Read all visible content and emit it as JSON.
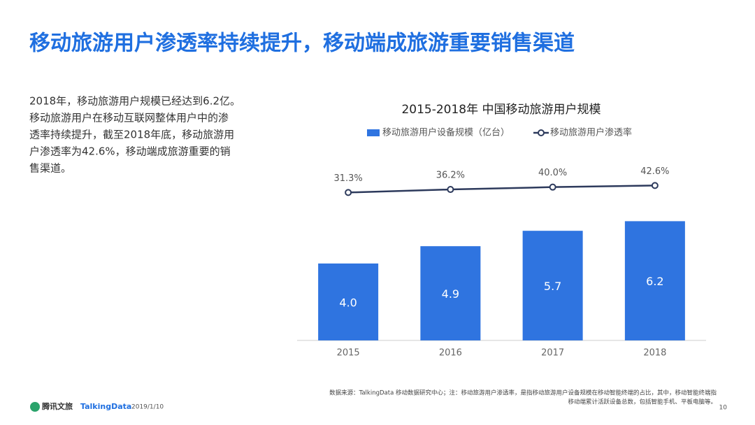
{
  "header": {
    "title": "移动旅游用户渗透率持续提升，移动端成旅游重要销售渠道"
  },
  "body": {
    "lines": [
      "2018年，移动旅游用户规模已经达到6.2亿。",
      "移动旅游用户在移动互联网整体用户中的渗",
      "透率持续提升，截至2018年底，移动旅游用",
      "户渗透率为42.6%，移动端成旅游重要的销",
      "售渠道。"
    ]
  },
  "chart_data": {
    "type": "bar",
    "title": "2015-2018年 中国移动旅游用户规模",
    "categories": [
      "2015",
      "2016",
      "2017",
      "2018"
    ],
    "series": [
      {
        "name": "移动旅游用户设备规模（亿台）",
        "type": "bar",
        "color": "#2f74e0",
        "values": [
          4.0,
          4.9,
          5.7,
          6.2
        ],
        "value_labels": [
          "4.0",
          "4.9",
          "5.7",
          "6.2"
        ]
      },
      {
        "name": "移动旅游用户渗透率",
        "type": "line",
        "axis": "y2",
        "color": "#2d3a5c",
        "values": [
          31.3,
          36.2,
          40.0,
          42.6
        ],
        "value_labels": [
          "31.3%",
          "36.2%",
          "40.0%",
          "42.6%"
        ]
      }
    ],
    "ylim": [
      0,
      9.45
    ],
    "y2lim": [
      -208,
      86
    ],
    "legend": "top"
  },
  "footer": {
    "brand1": "腾讯文旅",
    "brand2": "TalkingData",
    "date": "2019/1/10",
    "page": "10",
    "source": [
      "数据来源：TalkingData 移动数据研究中心；注：移动旅游用户渗透率，是指移动旅游用户设备规模在移动智能终端的占比，其中，移动智能终端指",
      "移动端累计活跃设备总数，包括智能手机、平板电脑等。"
    ]
  }
}
